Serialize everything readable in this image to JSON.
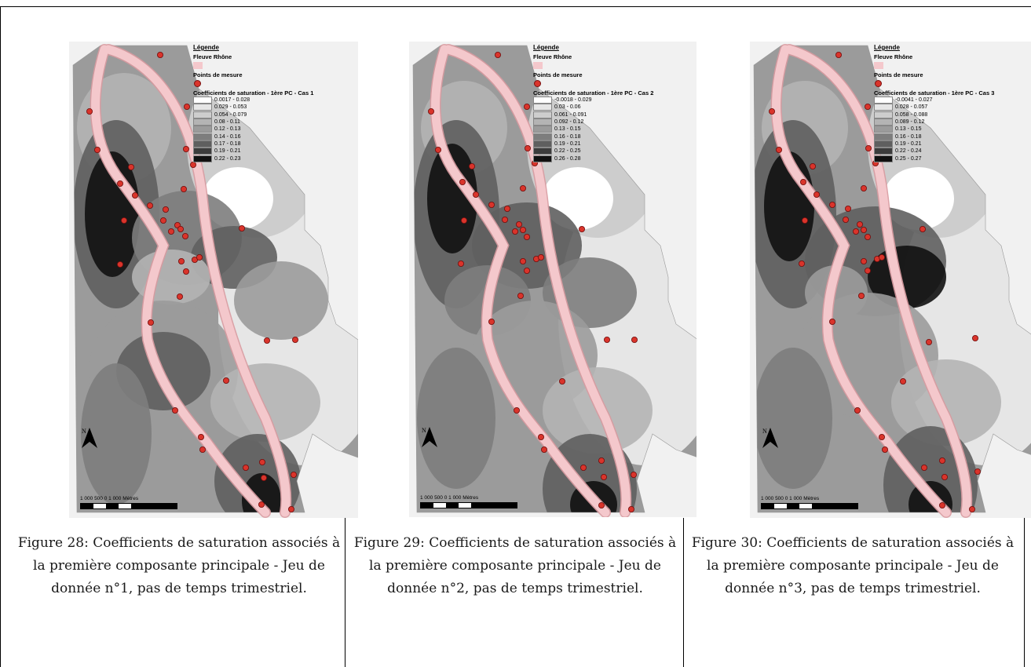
{
  "figures": [
    {
      "legend_title": "Légende",
      "river_label": "Fleuve Rhône",
      "points_label": "Points de mesure",
      "coef_title": "Coefficients de saturation - 1ère PC - Cas 1",
      "classes": [
        "0.0017 - 0.028",
        "0.029 - 0.053",
        "0.054 - 0.079",
        "0.08 - 0.11",
        "0.12 - 0.13",
        "0.14 - 0.16",
        "0.17 - 0.18",
        "0.19 - 0.21",
        "0.22 - 0.23"
      ],
      "north": "N",
      "scale_label": "1 000    500      0                  1 000 Mètres",
      "caption": "Figure 28: Coefficients de saturation associés à la première composante principale - Jeu de donnée n°1, pas de temps trimestriel."
    },
    {
      "legend_title": "Légende",
      "river_label": "Fleuve Rhône",
      "points_label": "Points de mesure",
      "coef_title": "Coefficients de saturation - 1ère PC - Cas 2",
      "classes": [
        "-0.0018 - 0.029",
        "0.03 - 0.06",
        "0.061 - 0.091",
        "0.092 - 0.12",
        "0.13 - 0.15",
        "0.16 - 0.18",
        "0.19 - 0.21",
        "0.22 - 0.25",
        "0.26 - 0.28"
      ],
      "north": "N",
      "scale_label": "1 000    500      0                  1 000 Mètres",
      "caption": "Figure 29: Coefficients de saturation associés à la première composante principale - Jeu de donnée n°2, pas de temps trimestriel."
    },
    {
      "legend_title": "Légende",
      "river_label": "Fleuve Rhône",
      "points_label": "Points de mesure",
      "coef_title": "Coefficients de saturation - 1ère PC - Cas 3",
      "classes": [
        "-0.0041 - 0.027",
        "0.028 - 0.057",
        "0.058 - 0.088",
        "0.089 - 0.12",
        "0.13 - 0.15",
        "0.16 - 0.18",
        "0.19 - 0.21",
        "0.22 - 0.24",
        "0.25 - 0.27"
      ],
      "north": "N",
      "scale_label": "1 000    500      0                  1 000 Mètres",
      "caption": "Figure 30: Coefficients de saturation associés à la première composante principale - Jeu de donnée n°3, pas de temps trimestriel."
    }
  ],
  "colors": {
    "river_fill": "#f4c8cc",
    "river_edge": "#d89aa0",
    "point_fill": "#d9342b",
    "classes": [
      "#ffffff",
      "#e6e6e6",
      "#cdcdcd",
      "#b4b4b4",
      "#9b9b9b",
      "#7d7d7d",
      "#5f5f5f",
      "#3c3c3c",
      "#111111"
    ]
  }
}
